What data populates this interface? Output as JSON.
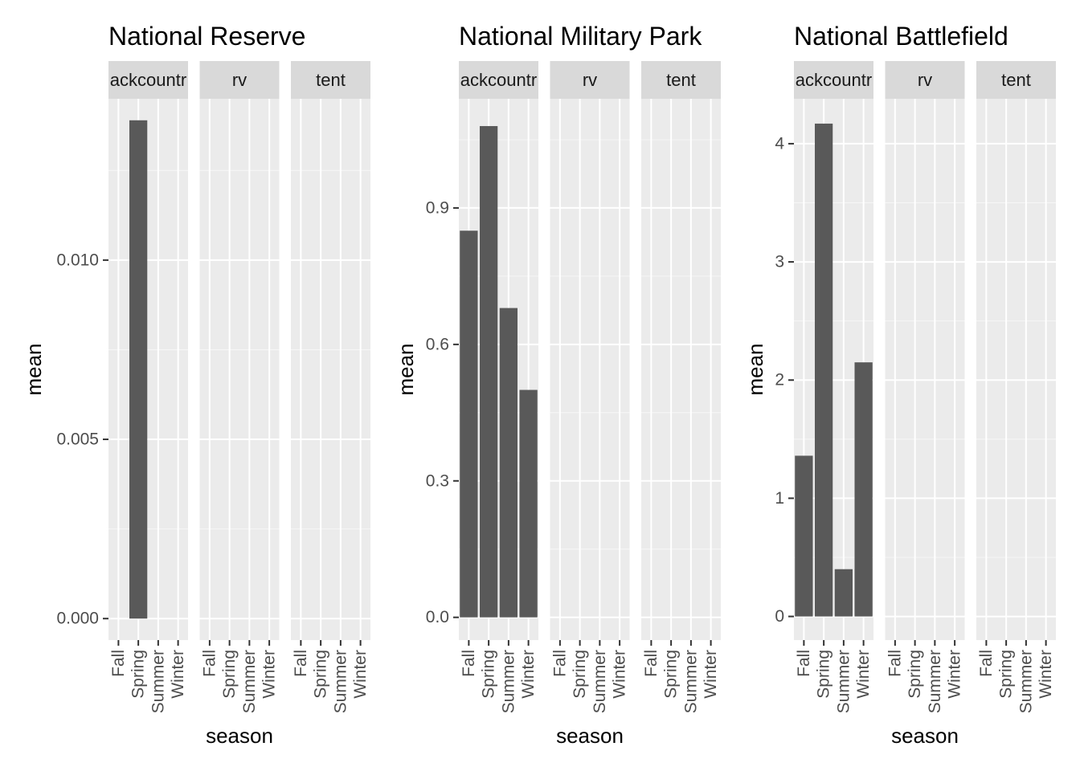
{
  "chart_data": [
    {
      "type": "bar",
      "title": "National Reserve",
      "xlabel": "season",
      "ylabel": "mean",
      "ylim": [
        -0.0006,
        0.0145
      ],
      "yticks": [
        0.0,
        0.005,
        0.01
      ],
      "ytick_labels": [
        "0.000",
        "0.005",
        "0.010"
      ],
      "facets": [
        "ackcountr",
        "rv",
        "tent"
      ],
      "categories": [
        "Fall",
        "Spring",
        "Summer",
        "Winter"
      ],
      "series": [
        {
          "facet": "ackcountr",
          "values": [
            0,
            0.0139,
            0,
            0
          ]
        },
        {
          "facet": "rv",
          "values": [
            0,
            0,
            0,
            0
          ]
        },
        {
          "facet": "tent",
          "values": [
            0,
            0,
            0,
            0
          ]
        }
      ],
      "grid": true,
      "bar_color": "#595959"
    },
    {
      "type": "bar",
      "title": "National Military Park",
      "xlabel": "season",
      "ylabel": "mean",
      "ylim": [
        -0.05,
        1.14
      ],
      "yticks": [
        0.0,
        0.3,
        0.6,
        0.9
      ],
      "ytick_labels": [
        "0.0",
        "0.3",
        "0.6",
        "0.9"
      ],
      "facets": [
        "ackcountr",
        "rv",
        "tent"
      ],
      "categories": [
        "Fall",
        "Spring",
        "Summer",
        "Winter"
      ],
      "series": [
        {
          "facet": "ackcountr",
          "values": [
            0.85,
            1.08,
            0.68,
            0.5
          ]
        },
        {
          "facet": "rv",
          "values": [
            0,
            0,
            0,
            0
          ]
        },
        {
          "facet": "tent",
          "values": [
            0,
            0,
            0,
            0
          ]
        }
      ],
      "grid": true,
      "bar_color": "#595959"
    },
    {
      "type": "bar",
      "title": "National Battlefield",
      "xlabel": "season",
      "ylabel": "mean",
      "ylim": [
        -0.2,
        4.38
      ],
      "yticks": [
        0,
        1,
        2,
        3,
        4
      ],
      "ytick_labels": [
        "0",
        "1",
        "2",
        "3",
        "4"
      ],
      "facets": [
        "ackcountr",
        "rv",
        "tent"
      ],
      "categories": [
        "Fall",
        "Spring",
        "Summer",
        "Winter"
      ],
      "series": [
        {
          "facet": "ackcountr",
          "values": [
            1.36,
            4.17,
            0.4,
            2.15
          ]
        },
        {
          "facet": "rv",
          "values": [
            0,
            0,
            0,
            0
          ]
        },
        {
          "facet": "tent",
          "values": [
            0,
            0,
            0,
            0
          ]
        }
      ],
      "grid": true,
      "bar_color": "#595959"
    }
  ]
}
